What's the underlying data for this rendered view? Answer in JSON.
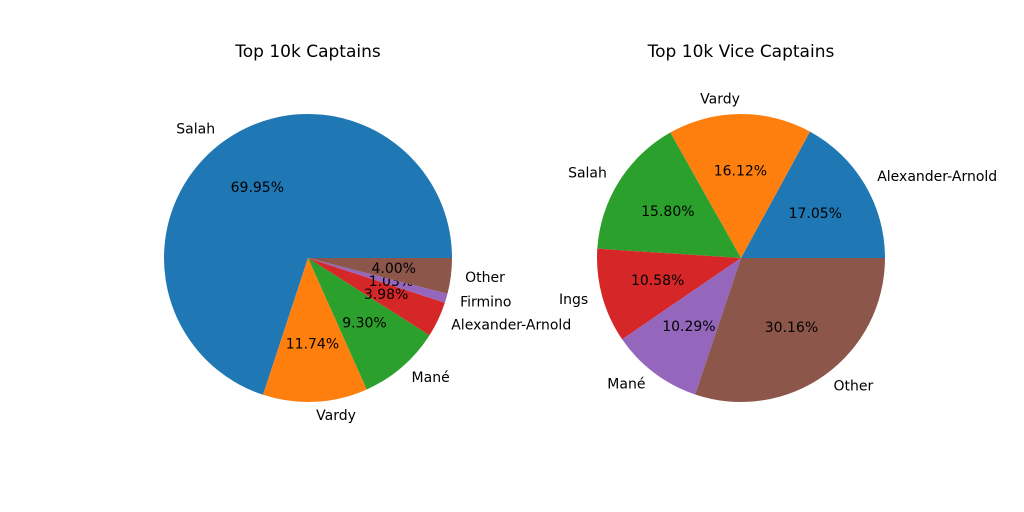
{
  "colors": [
    "#1f77b4",
    "#ff7f0e",
    "#2ca02c",
    "#d62728",
    "#9467bd",
    "#8c564b"
  ],
  "chart_data": [
    {
      "type": "pie",
      "title": "Top 10k Captains",
      "labels": [
        "Salah",
        "Vardy",
        "Mané",
        "Alexander-Arnold",
        "Firmino",
        "Other"
      ],
      "values": [
        69.95,
        11.74,
        9.3,
        3.98,
        1.03,
        4.0
      ],
      "value_labels": [
        "69.95%",
        "11.74%",
        "9.30%",
        "3.98%",
        "1.03%",
        "4.00%"
      ],
      "start_angle": 0,
      "direction": "counterclockwise"
    },
    {
      "type": "pie",
      "title": "Top 10k Vice Captains",
      "labels": [
        "Alexander-Arnold",
        "Vardy",
        "Salah",
        "Ings",
        "Mané",
        "Other"
      ],
      "values": [
        17.05,
        16.12,
        15.8,
        10.58,
        10.29,
        30.16
      ],
      "value_labels": [
        "17.05%",
        "16.12%",
        "15.80%",
        "10.58%",
        "10.29%",
        "30.16%"
      ],
      "start_angle": 0,
      "direction": "counterclockwise"
    }
  ]
}
